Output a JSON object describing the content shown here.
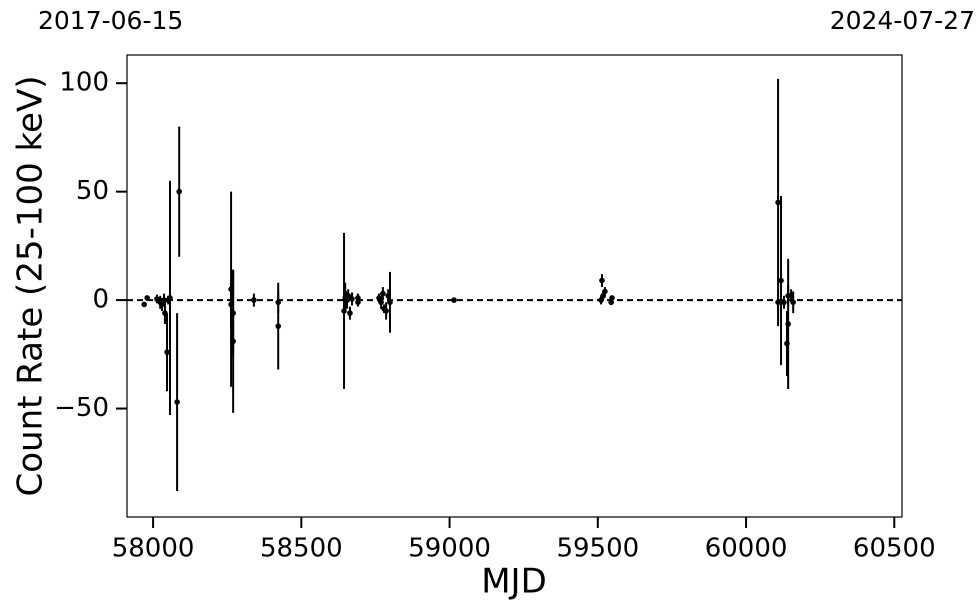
{
  "chart_data": {
    "type": "errorbar",
    "title_left": "2017-06-15",
    "title_right": "2024-07-27",
    "xlabel": "MJD",
    "ylabel": "Count Rate (25-100 keV)",
    "xlim": [
      57912,
      60526
    ],
    "ylim": [
      -100,
      113
    ],
    "xticks": [
      58000,
      58500,
      59000,
      59500,
      60000,
      60500
    ],
    "yticks": [
      {
        "value": -50,
        "label": "−50"
      },
      0,
      50,
      100
    ],
    "hline": 0,
    "color": "#000000",
    "x": [
      57970,
      57980,
      58013,
      58024,
      58030,
      58037,
      58040,
      58047,
      58051,
      58057,
      58081,
      58088,
      58263,
      58263,
      58270,
      58270,
      58340,
      58422,
      58422,
      58644,
      58648,
      58654,
      58658,
      58664,
      58671,
      58691,
      58691,
      58762,
      58769,
      58775,
      58779,
      58786,
      58793,
      58799,
      59015,
      59511,
      59514,
      59518,
      59524,
      59545,
      59548,
      60108,
      60108,
      60118,
      60128,
      60138,
      60142,
      60142,
      60152,
      60159
    ],
    "values": [
      -2,
      1,
      0.5,
      -1,
      -2,
      0,
      -6,
      -24,
      0,
      1,
      -47,
      50,
      5,
      -2,
      -19,
      -6,
      0,
      -12,
      -1,
      -5,
      1,
      0,
      2,
      -6,
      0.5,
      1,
      -1,
      1,
      -1,
      3,
      -4,
      -5,
      2,
      -1,
      0,
      0,
      9,
      2,
      4,
      -1,
      1,
      45,
      -1,
      9,
      -1,
      -20,
      -11,
      2,
      2,
      -1
    ],
    "errors": [
      1,
      1,
      2,
      3,
      3,
      3,
      5,
      18,
      2,
      54,
      41,
      30,
      45,
      10,
      33,
      20,
      3,
      20,
      5,
      36,
      7,
      4,
      3,
      3,
      3,
      2,
      2,
      2,
      3,
      3,
      2,
      4,
      3,
      14,
      1,
      2,
      3,
      2,
      2,
      1,
      1,
      57,
      5,
      39,
      3,
      15,
      30,
      5,
      3,
      5
    ]
  }
}
